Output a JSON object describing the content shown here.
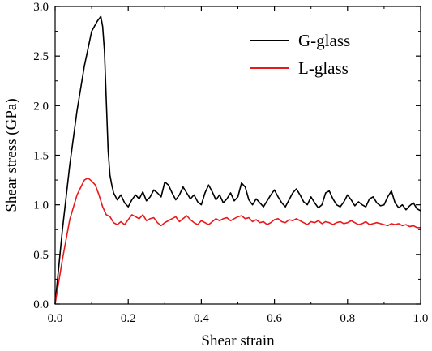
{
  "chart_data": {
    "type": "line",
    "title": "",
    "xlabel": "Shear strain",
    "ylabel": "Shear stress (GPa)",
    "xlim": [
      0.0,
      1.0
    ],
    "ylim": [
      0.0,
      3.0
    ],
    "x_ticks": [
      "0.0",
      "0.2",
      "0.4",
      "0.6",
      "0.8",
      "1.0"
    ],
    "y_ticks": [
      "0.0",
      "0.5",
      "1.0",
      "1.5",
      "2.0",
      "2.5",
      "3.0"
    ],
    "grid": false,
    "legend_position": "top-right",
    "series": [
      {
        "name": "G-glass",
        "color": "#000000",
        "x": [
          0.0,
          0.02,
          0.04,
          0.06,
          0.08,
          0.1,
          0.115,
          0.125,
          0.13,
          0.135,
          0.14,
          0.145,
          0.15,
          0.155,
          0.16,
          0.17,
          0.18,
          0.19,
          0.2,
          0.21,
          0.22,
          0.23,
          0.24,
          0.25,
          0.26,
          0.27,
          0.28,
          0.29,
          0.3,
          0.31,
          0.32,
          0.33,
          0.34,
          0.35,
          0.36,
          0.37,
          0.38,
          0.39,
          0.4,
          0.41,
          0.42,
          0.43,
          0.44,
          0.45,
          0.46,
          0.47,
          0.48,
          0.49,
          0.5,
          0.51,
          0.52,
          0.53,
          0.54,
          0.55,
          0.56,
          0.57,
          0.58,
          0.59,
          0.6,
          0.61,
          0.62,
          0.63,
          0.64,
          0.65,
          0.66,
          0.67,
          0.68,
          0.69,
          0.7,
          0.71,
          0.72,
          0.73,
          0.74,
          0.75,
          0.76,
          0.77,
          0.78,
          0.79,
          0.8,
          0.81,
          0.82,
          0.83,
          0.84,
          0.85,
          0.86,
          0.87,
          0.88,
          0.89,
          0.9,
          0.91,
          0.92,
          0.93,
          0.94,
          0.95,
          0.96,
          0.97,
          0.98,
          0.99,
          1.0
        ],
        "values": [
          0.0,
          0.75,
          1.4,
          1.95,
          2.4,
          2.75,
          2.85,
          2.9,
          2.8,
          2.55,
          2.05,
          1.55,
          1.3,
          1.2,
          1.12,
          1.05,
          1.1,
          1.02,
          0.98,
          1.05,
          1.1,
          1.06,
          1.13,
          1.04,
          1.08,
          1.15,
          1.12,
          1.08,
          1.23,
          1.2,
          1.12,
          1.05,
          1.1,
          1.18,
          1.12,
          1.06,
          1.1,
          1.03,
          1.0,
          1.12,
          1.2,
          1.13,
          1.05,
          1.1,
          1.02,
          1.06,
          1.12,
          1.04,
          1.08,
          1.22,
          1.18,
          1.05,
          1.0,
          1.06,
          1.02,
          0.98,
          1.04,
          1.1,
          1.15,
          1.08,
          1.02,
          0.98,
          1.05,
          1.12,
          1.16,
          1.1,
          1.03,
          1.0,
          1.08,
          1.02,
          0.97,
          1.0,
          1.12,
          1.14,
          1.06,
          1.0,
          0.98,
          1.03,
          1.1,
          1.05,
          0.99,
          1.03,
          1.0,
          0.98,
          1.06,
          1.08,
          1.02,
          0.99,
          1.0,
          1.08,
          1.14,
          1.02,
          0.97,
          1.0,
          0.95,
          0.99,
          1.02,
          0.96,
          0.94
        ]
      },
      {
        "name": "L-glass",
        "color": "#e8191a",
        "x": [
          0.0,
          0.02,
          0.04,
          0.06,
          0.08,
          0.09,
          0.1,
          0.11,
          0.12,
          0.13,
          0.14,
          0.15,
          0.16,
          0.17,
          0.18,
          0.19,
          0.2,
          0.21,
          0.22,
          0.23,
          0.24,
          0.25,
          0.26,
          0.27,
          0.28,
          0.29,
          0.3,
          0.31,
          0.32,
          0.33,
          0.34,
          0.35,
          0.36,
          0.37,
          0.38,
          0.39,
          0.4,
          0.41,
          0.42,
          0.43,
          0.44,
          0.45,
          0.46,
          0.47,
          0.48,
          0.49,
          0.5,
          0.51,
          0.52,
          0.53,
          0.54,
          0.55,
          0.56,
          0.57,
          0.58,
          0.59,
          0.6,
          0.61,
          0.62,
          0.63,
          0.64,
          0.65,
          0.66,
          0.67,
          0.68,
          0.69,
          0.7,
          0.71,
          0.72,
          0.73,
          0.74,
          0.75,
          0.76,
          0.77,
          0.78,
          0.79,
          0.8,
          0.81,
          0.82,
          0.83,
          0.84,
          0.85,
          0.86,
          0.87,
          0.88,
          0.89,
          0.9,
          0.91,
          0.92,
          0.93,
          0.94,
          0.95,
          0.96,
          0.97,
          0.98,
          0.99,
          1.0
        ],
        "values": [
          0.0,
          0.45,
          0.85,
          1.1,
          1.25,
          1.27,
          1.24,
          1.2,
          1.1,
          0.98,
          0.9,
          0.88,
          0.82,
          0.8,
          0.83,
          0.8,
          0.85,
          0.9,
          0.88,
          0.86,
          0.9,
          0.84,
          0.86,
          0.87,
          0.82,
          0.79,
          0.82,
          0.84,
          0.86,
          0.88,
          0.83,
          0.86,
          0.89,
          0.85,
          0.82,
          0.8,
          0.84,
          0.82,
          0.8,
          0.83,
          0.86,
          0.84,
          0.86,
          0.87,
          0.84,
          0.86,
          0.88,
          0.89,
          0.86,
          0.87,
          0.83,
          0.85,
          0.82,
          0.83,
          0.8,
          0.82,
          0.85,
          0.86,
          0.83,
          0.82,
          0.85,
          0.84,
          0.86,
          0.84,
          0.82,
          0.8,
          0.83,
          0.82,
          0.84,
          0.81,
          0.83,
          0.82,
          0.8,
          0.82,
          0.83,
          0.81,
          0.82,
          0.84,
          0.82,
          0.8,
          0.81,
          0.83,
          0.8,
          0.81,
          0.82,
          0.81,
          0.8,
          0.79,
          0.81,
          0.8,
          0.81,
          0.79,
          0.8,
          0.78,
          0.79,
          0.77,
          0.77
        ]
      }
    ]
  }
}
